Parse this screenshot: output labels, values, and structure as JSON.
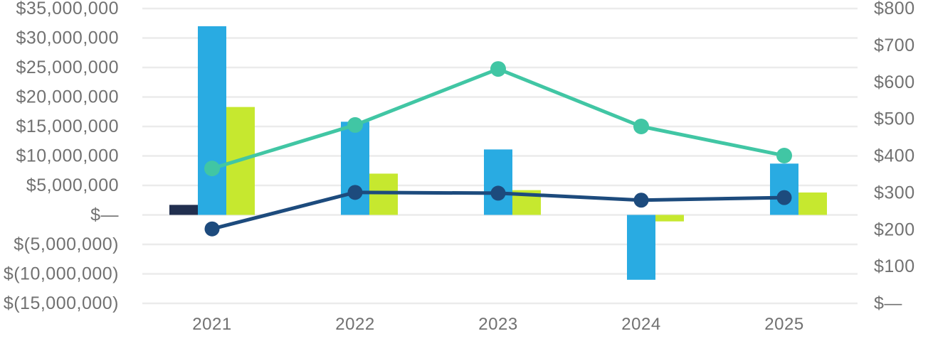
{
  "chart_data": {
    "type": "combo",
    "title": "",
    "categories": [
      "2021",
      "2022",
      "2023",
      "2024",
      "2025"
    ],
    "bar_series": [
      {
        "name": "navy-bars",
        "color": "#212F4F",
        "axis": "left",
        "values": [
          1700000,
          0,
          0,
          0,
          0
        ]
      },
      {
        "name": "blue-bars",
        "color": "#29ABE2",
        "axis": "left",
        "values": [
          32000000,
          15800000,
          11100000,
          -11000000,
          8700000
        ]
      },
      {
        "name": "lime-bars",
        "color": "#C6E82F",
        "axis": "left",
        "values": [
          18300000,
          7000000,
          4200000,
          -1100000,
          3800000
        ]
      }
    ],
    "line_series": [
      {
        "name": "teal-line",
        "color": "#41C6A4",
        "axis": "right",
        "values": [
          366,
          484,
          636,
          480,
          401
        ]
      },
      {
        "name": "navy-line",
        "color": "#1D4B7D",
        "axis": "right",
        "values": [
          202,
          301,
          299,
          280,
          287
        ]
      }
    ],
    "left_axis": {
      "min": -15000000,
      "max": 35000000,
      "step": 5000000,
      "tick_labels": [
        "$35,000,000",
        "$30,000,000",
        "$25,000,000",
        "$20,000,000",
        "$15,000,000",
        "$10,000,000",
        "$5,000,000",
        "$—",
        "$(5,000,000)",
        "$(10,000,000)",
        "$(15,000,000)"
      ]
    },
    "right_axis": {
      "min": 0,
      "max": 800,
      "step": 100,
      "tick_labels": [
        "$800",
        "$700",
        "$600",
        "$500",
        "$400",
        "$300",
        "$200",
        "$100",
        "$—"
      ]
    },
    "grid": true,
    "legend": "none",
    "colors": {
      "gridline": "#EBEBEB",
      "axis_text": "#717171",
      "background": "#FFFFFF"
    }
  }
}
